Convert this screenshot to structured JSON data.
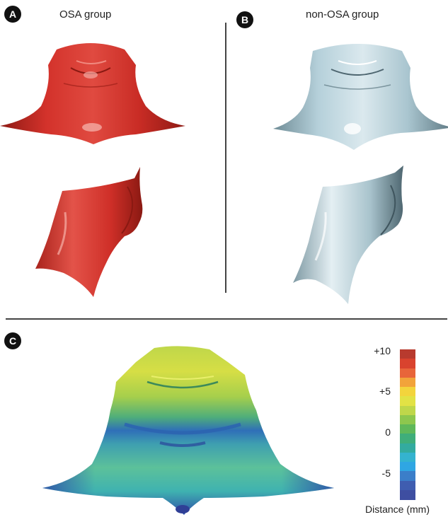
{
  "panels": [
    {
      "badge": "A",
      "title": "OSA group",
      "color": "#d3322b"
    },
    {
      "badge": "B",
      "title": "non-OSA group",
      "color": "#b5d0da"
    },
    {
      "badge": "C",
      "title": ""
    }
  ],
  "colorbar": {
    "title": "Distance (mm)",
    "tick_labels": [
      "+10",
      "+5",
      "0",
      "-5"
    ],
    "colors": [
      "#b83a2e",
      "#d9432e",
      "#e8653a",
      "#f2a33a",
      "#f3d43c",
      "#e2e245",
      "#bfd74a",
      "#8dc74e",
      "#5fb85a",
      "#3fae7a",
      "#33ab9f",
      "#34b3cf",
      "#2fa6e3",
      "#3b7ec9",
      "#3f5db0",
      "#3e4ea1"
    ]
  }
}
